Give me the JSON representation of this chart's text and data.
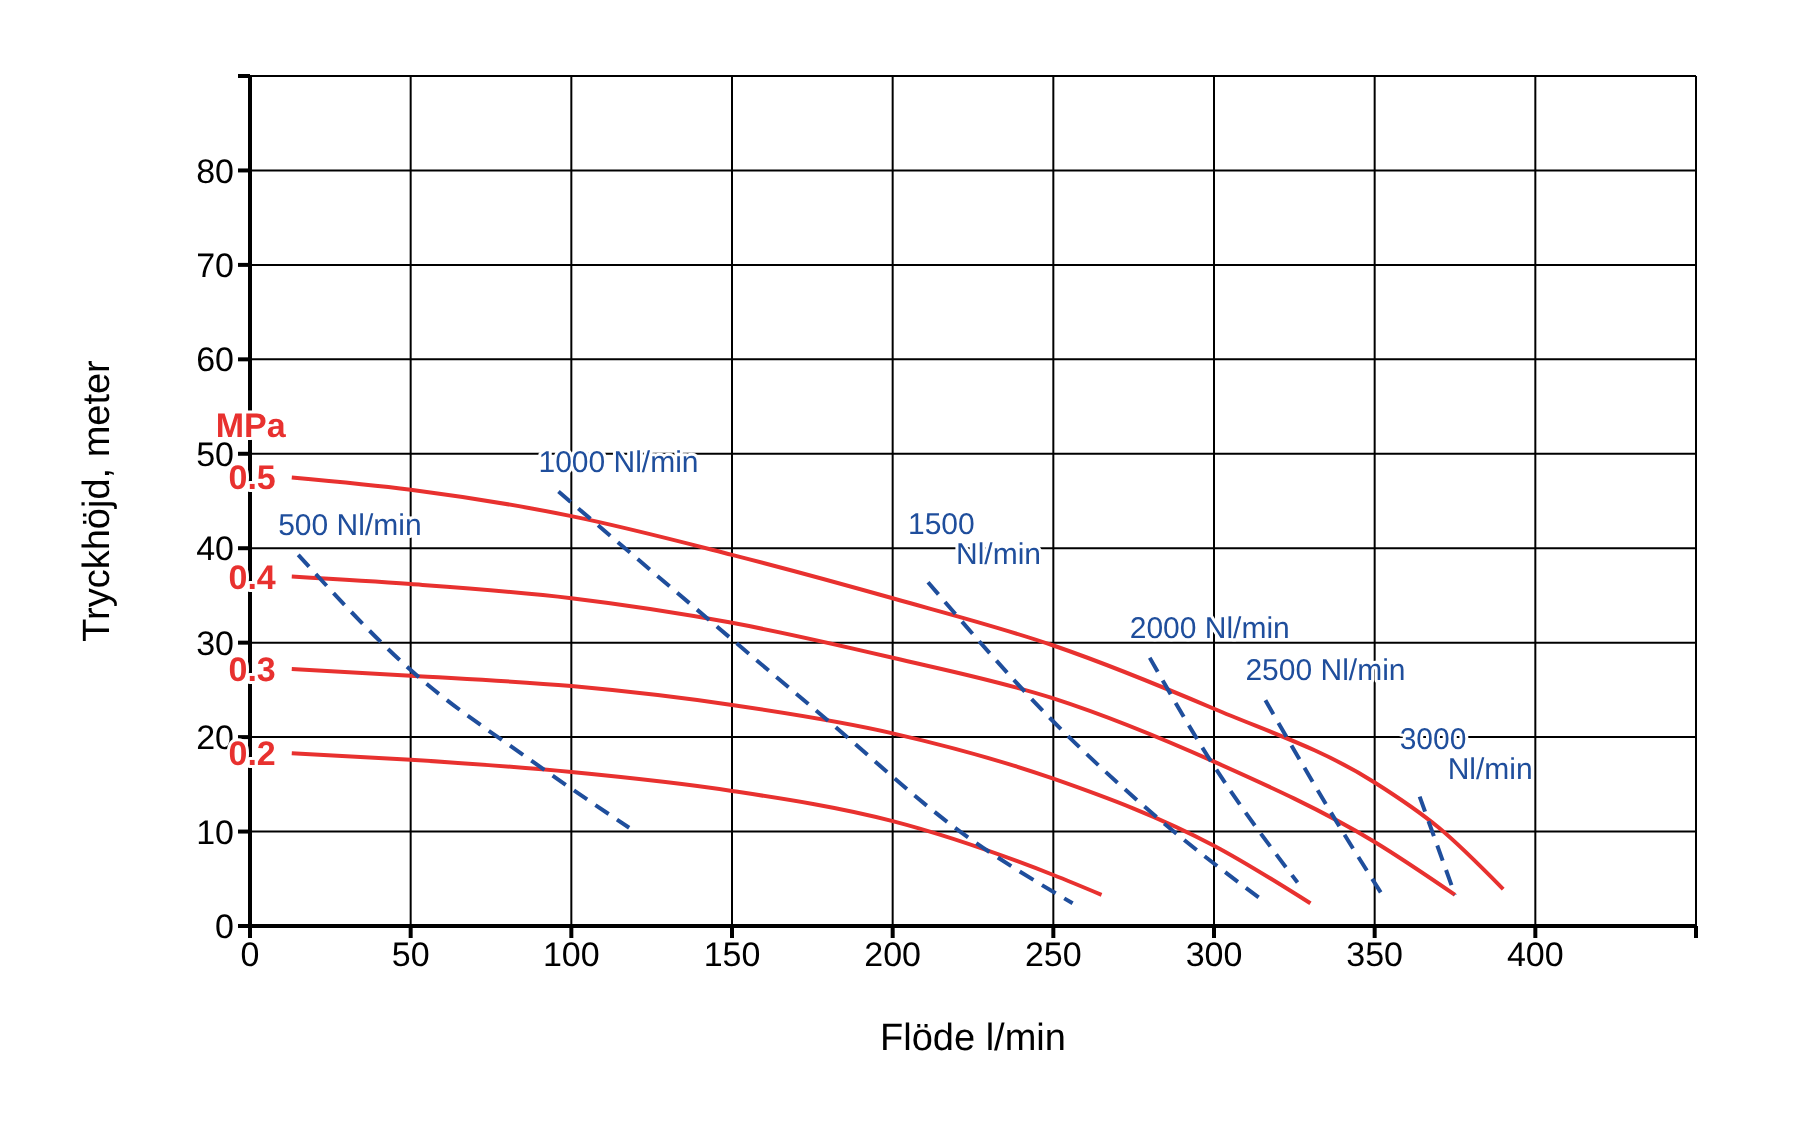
{
  "chart_data": {
    "type": "line",
    "xlabel": "Flöde l/min",
    "ylabel": "Tryckhöjd, meter",
    "xlim": [
      0,
      450
    ],
    "xticks": [
      0,
      50,
      100,
      150,
      200,
      250,
      300,
      350,
      400,
      {
        "value": 450,
        "label": null
      }
    ],
    "ylim": [
      0,
      90
    ],
    "yticks": [
      0,
      10,
      20,
      30,
      40,
      50,
      60,
      70,
      80,
      {
        "value": 90,
        "label": null
      }
    ],
    "grid": true,
    "legend": false,
    "marker": "none",
    "annotations": [
      "MPa"
    ],
    "series": [
      {
        "name": "0.5",
        "color": "#e8312f",
        "line_style": "solid",
        "x": [
          13,
          50,
          100,
          150,
          200,
          250,
          300,
          350,
          370,
          390
        ],
        "values": [
          47.5,
          46.2,
          43.4,
          39.3,
          34.7,
          29.7,
          23,
          15.2,
          10.4,
          3.9
        ]
      },
      {
        "name": "0.4",
        "color": "#e8312f",
        "line_style": "solid",
        "x": [
          13,
          50,
          100,
          150,
          200,
          250,
          300,
          350,
          375
        ],
        "values": [
          37,
          36.2,
          34.7,
          32.1,
          28.4,
          24.1,
          17.4,
          8.9,
          3.3
        ]
      },
      {
        "name": "0.3",
        "color": "#e8312f",
        "line_style": "solid",
        "x": [
          13,
          50,
          100,
          150,
          200,
          250,
          300,
          330
        ],
        "values": [
          27.2,
          26.5,
          25.4,
          23.4,
          20.4,
          15.6,
          8.5,
          2.4
        ]
      },
      {
        "name": "0.2",
        "color": "#e8312f",
        "line_style": "solid",
        "x": [
          13,
          50,
          100,
          150,
          200,
          250,
          265
        ],
        "values": [
          18.3,
          17.6,
          16.3,
          14.3,
          11.1,
          5.4,
          3.3
        ]
      },
      {
        "name": "500 Nl/min",
        "color": "#1f4e9c",
        "line_style": "dashed",
        "x": [
          15,
          50,
          88,
          118
        ],
        "values": [
          39.3,
          27.1,
          17.4,
          10.4
        ]
      },
      {
        "name": "1000 Nl/min",
        "color": "#1f4e9c",
        "line_style": "dashed",
        "x": [
          96,
          179,
          221,
          256
        ],
        "values": [
          46,
          22,
          10,
          2.4
        ]
      },
      {
        "name": "1500\nNl/min",
        "color": "#1f4e9c",
        "line_style": "dashed",
        "x": [
          211,
          249,
          284,
          314
        ],
        "values": [
          36.4,
          22,
          11,
          3
        ]
      },
      {
        "name": "2000 Nl/min",
        "color": "#1f4e9c",
        "line_style": "dashed",
        "x": [
          280,
          298,
          326
        ],
        "values": [
          28.4,
          18,
          4.6
        ]
      },
      {
        "name": "2500 Nl/min",
        "color": "#1f4e9c",
        "line_style": "dashed",
        "x": [
          316,
          340,
          352
        ],
        "values": [
          23.9,
          10,
          3.5
        ]
      },
      {
        "name": "3000\nNl/min",
        "color": "#1f4e9c",
        "line_style": "dashed",
        "x": [
          364,
          375
        ],
        "values": [
          13.7,
          3.3
        ]
      }
    ]
  }
}
